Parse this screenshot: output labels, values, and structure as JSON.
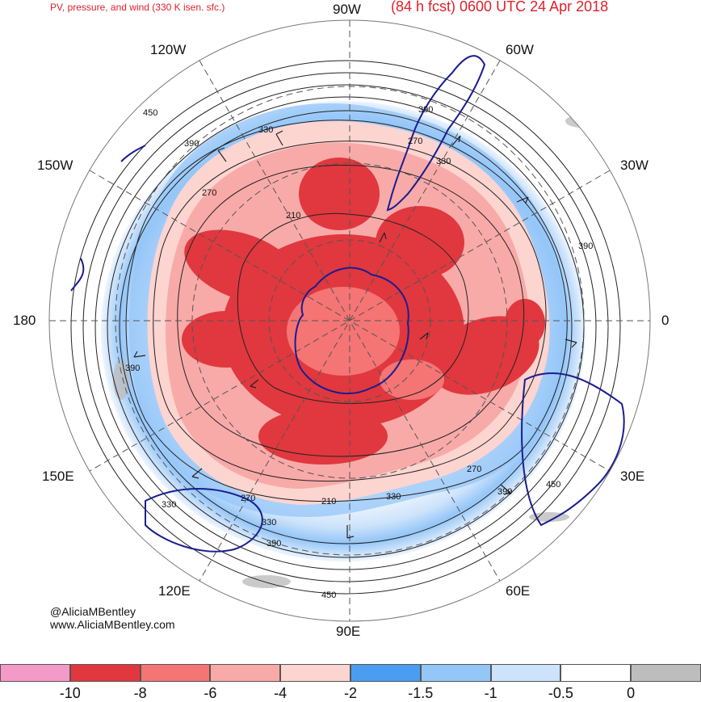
{
  "header": {
    "title_left": "PV, pressure, and wind (330 K isen. sfc.)",
    "title_right": "(84 h fcst) 0600 UTC 24 Apr 2018"
  },
  "longitude_labels": {
    "n90w": "90W",
    "n60w": "60W",
    "n120w": "120W",
    "n150w": "150W",
    "n30w": "30W",
    "w180": "180",
    "e0": "0",
    "n150e": "150E",
    "n30e": "30E",
    "n120e": "120E",
    "n60e": "60E",
    "n90e": "90E"
  },
  "contour_labels": [
    "390",
    "330",
    "450",
    "270",
    "390",
    "330",
    "210",
    "390",
    "390",
    "270",
    "330",
    "390",
    "270",
    "450",
    "270",
    "210",
    "330",
    "330",
    "390",
    "450"
  ],
  "credits": {
    "handle": "@AliciaMBentley",
    "site": "www.AliciaMBentley.com"
  },
  "colorbar": {
    "colors": [
      "#f49ac8",
      "#e0383e",
      "#f57474",
      "#f8aaa8",
      "#fcd4d0",
      "#4a9df0",
      "#94c6f8",
      "#cde3fb",
      "#ffffff",
      "#bdbdbd"
    ],
    "ticks": [
      "-10",
      "-8",
      "-6",
      "-4",
      "-2",
      "-1.5",
      "-1",
      "-0.5",
      "0"
    ]
  },
  "palette": {
    "land_outline": "#1a1d8f",
    "contour": "#222222",
    "grid": "#555555",
    "high_pv": "#e0383e",
    "low_pv": "#94c6f8"
  }
}
